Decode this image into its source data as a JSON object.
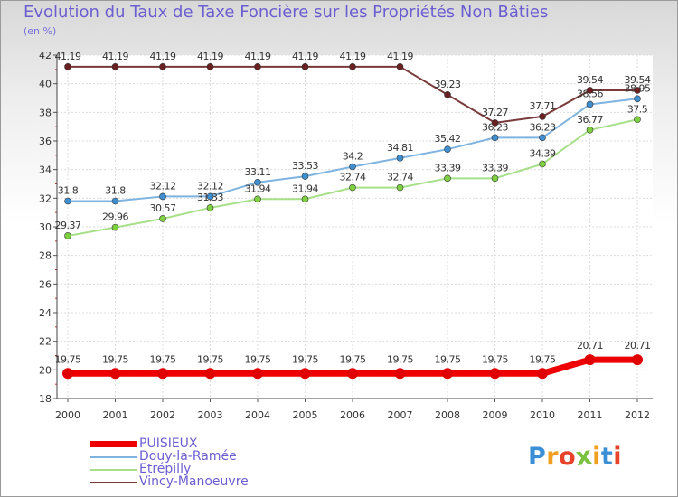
{
  "title": "Evolution du Taux de Taxe Foncière sur les Propriétés Non Bâties",
  "subtitle": "(en %)",
  "logo": {
    "text": "Proxiti",
    "colors": [
      "#3b8fd6",
      "#f0a020",
      "#e8432a",
      "#7cc242",
      "#f0a020",
      "#3b8fd6",
      "#e8432a"
    ]
  },
  "chart_data": {
    "type": "line",
    "title": "Evolution du Taux de Taxe Foncière sur les Propriétés Non Bâties",
    "ylabel": "(en %)",
    "xlabel": "",
    "ylim": [
      18,
      42
    ],
    "yticks": [
      18,
      20,
      22,
      24,
      26,
      28,
      30,
      32,
      34,
      36,
      38,
      40,
      42
    ],
    "grid": true,
    "legend": "bottom-left",
    "x": [
      "2000",
      "2001",
      "2002",
      "2003",
      "2004",
      "2005",
      "2006",
      "2007",
      "2008",
      "2009",
      "2010",
      "2011",
      "2012"
    ],
    "series": [
      {
        "name": "PUISIEUX",
        "color": "#ee0000",
        "marker": "#e00000",
        "bold": true,
        "values": [
          19.75,
          19.75,
          19.75,
          19.75,
          19.75,
          19.75,
          19.75,
          19.75,
          19.75,
          19.75,
          19.75,
          20.71,
          20.71
        ],
        "labels": [
          "19.75",
          "19.75",
          "19.75",
          "19.75",
          "19.75",
          "19.75",
          "19.75",
          "19.75",
          "19.75",
          "19.75",
          "19.75",
          "20.71",
          "20.71"
        ]
      },
      {
        "name": "Douy-la-Ramée",
        "color": "#7fb3e0",
        "marker": "#3f8fd0",
        "bold": false,
        "values": [
          31.8,
          31.8,
          32.12,
          32.12,
          33.11,
          33.53,
          34.2,
          34.81,
          35.42,
          36.23,
          36.23,
          38.56,
          38.95
        ],
        "labels": [
          "31.8",
          "31.8",
          "32.12",
          "32.12",
          "33.11",
          "33.53",
          "34.2",
          "34.81",
          "35.42",
          "36.23",
          "36.23",
          "38.56",
          "38.95"
        ]
      },
      {
        "name": "Etrépilly",
        "color": "#a8e08a",
        "marker": "#7fd040",
        "bold": false,
        "values": [
          29.37,
          29.96,
          30.57,
          31.33,
          31.94,
          31.94,
          32.74,
          32.74,
          33.39,
          33.39,
          34.39,
          36.77,
          37.5
        ],
        "labels": [
          "29.37",
          "29.96",
          "30.57",
          "31.33",
          "31.94",
          "31.94",
          "32.74",
          "32.74",
          "33.39",
          "33.39",
          "34.39",
          "36.77",
          "37.5"
        ]
      },
      {
        "name": "Vincy-Manoeuvre",
        "color": "#7a3a3a",
        "marker": "#6a2020",
        "bold": false,
        "values": [
          41.19,
          41.19,
          41.19,
          41.19,
          41.19,
          41.19,
          41.19,
          41.19,
          39.23,
          37.27,
          37.71,
          39.54,
          39.54
        ],
        "labels": [
          "41.19",
          "41.19",
          "41.19",
          "41.19",
          "41.19",
          "41.19",
          "41.19",
          "41.19",
          "39.23",
          "37.27",
          "37.71",
          "39.54",
          "39.54"
        ]
      }
    ]
  }
}
